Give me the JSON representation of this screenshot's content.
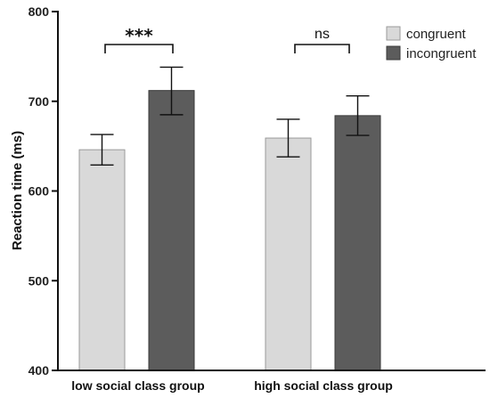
{
  "chart_data": {
    "type": "bar",
    "ylabel": "Reaction time (ms)",
    "xlabel": "",
    "ylim": [
      400,
      800
    ],
    "yticks": [
      400,
      500,
      600,
      700,
      800
    ],
    "categories": [
      "low social class group",
      "high social class group"
    ],
    "series": [
      {
        "name": "congruent",
        "color": "#d9d9d9",
        "values": [
          646,
          659
        ],
        "error_low": [
          629,
          638
        ],
        "error_high": [
          663,
          680
        ]
      },
      {
        "name": "incongruent",
        "color": "#5c5c5c",
        "values": [
          712,
          684
        ],
        "error_low": [
          685,
          662
        ],
        "error_high": [
          738,
          706
        ]
      }
    ],
    "significance": [
      {
        "category": "low social class group",
        "label": "***"
      },
      {
        "category": "high social class group",
        "label": "ns"
      }
    ],
    "legend_position": "top-right",
    "grid": false
  }
}
